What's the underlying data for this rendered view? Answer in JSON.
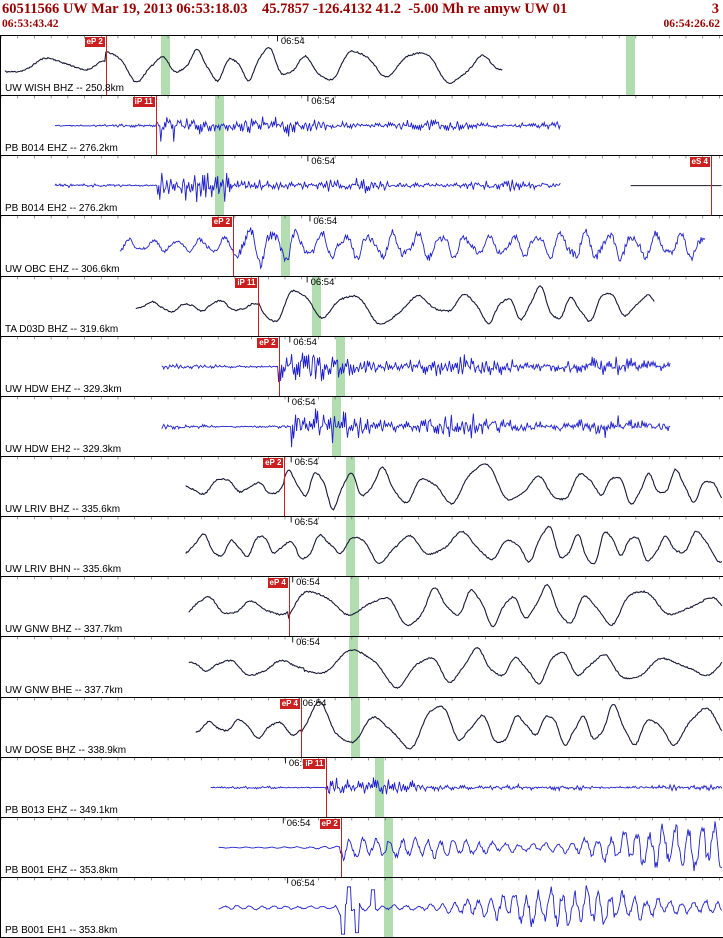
{
  "header": {
    "event_line": "60511566 UW Mar 19, 2013 06:53:18.03    45.7857 -126.4132 41.2  -5.00 Mh re amyw UW 01",
    "event_trailing": "3",
    "window_start": "06:53:43.42",
    "window_end": "06:54:26.62"
  },
  "colors": {
    "header_red": "#990000",
    "trace_dark": "#181836",
    "trace_blue": "#2020cc",
    "pick_red": "#cc1f1f",
    "band_green": "#a9d9a9",
    "frame": "#000000"
  },
  "traces": [
    {
      "station": "UW WISH BHZ -- 250.8km",
      "time_label": "06:54",
      "label_x": 0.383,
      "color": "dark",
      "style": "lp",
      "seed": 11,
      "start": 0.006,
      "end": 0.695,
      "onset": 0.145,
      "noise": 0.3,
      "peak": 0.8,
      "sustain": 0.62,
      "decay": 260,
      "period": 46,
      "picks": [
        {
          "label": "eP 2",
          "x": 0.145
        }
      ],
      "markers": [
        0.228,
        0.871
      ]
    },
    {
      "station": "PB B014 EHZ -- 276.2km",
      "time_label": "06:54",
      "label_x": 0.425,
      "color": "blue",
      "style": "hf",
      "seed": 22,
      "start": 0.075,
      "end": 0.775,
      "onset": 0.214,
      "noise": 0.08,
      "peak": 0.95,
      "sustain": 0.2,
      "decay": 90,
      "period": 2.2,
      "picks": [
        {
          "label": "iP 11",
          "x": 0.214
        }
      ],
      "markers": [
        0.302
      ]
    },
    {
      "station": "PB B014 EH2 -- 276.2km",
      "time_label": "06:54",
      "label_x": 0.425,
      "color": "blue",
      "style": "hf",
      "seed": 33,
      "start": 0.075,
      "end": 0.775,
      "onset": 0.216,
      "noise": 0.08,
      "peak": 1.0,
      "sustain": 0.2,
      "decay": 90,
      "period": 2.2,
      "picks": [
        {
          "label": "eS 4",
          "x": 0.982
        }
      ],
      "markers": [
        0.302
      ],
      "flat": [
        0.872,
        0.998
      ]
    },
    {
      "station": "UW OBC EHZ -- 306.6km",
      "time_label": "06:54",
      "label_x": 0.428,
      "color": "blue",
      "style": "mp",
      "seed": 44,
      "start": 0.165,
      "end": 0.975,
      "onset": 0.321,
      "noise": 0.3,
      "peak": 0.62,
      "sustain": 0.5,
      "decay": 400,
      "period": 24,
      "picks": [
        {
          "label": "eP 2",
          "x": 0.321
        }
      ],
      "markers": [
        0.394
      ]
    },
    {
      "station": "TA D03D BHZ -- 319.6km",
      "time_label": "06:54",
      "label_x": 0.424,
      "color": "dark",
      "style": "lp",
      "seed": 55,
      "start": 0.187,
      "end": 0.905,
      "onset": 0.356,
      "noise": 0.2,
      "peak": 0.8,
      "sustain": 0.6,
      "decay": 300,
      "period": 44,
      "picks": [
        {
          "label": "iP 11",
          "x": 0.356
        }
      ],
      "markers": [
        0.436
      ]
    },
    {
      "station": "UW HDW EHZ -- 329.3km",
      "time_label": "06:54",
      "label_x": 0.4,
      "color": "blue",
      "style": "hf",
      "seed": 66,
      "start": 0.222,
      "end": 0.927,
      "onset": 0.384,
      "noise": 0.1,
      "peak": 0.85,
      "sustain": 0.3,
      "decay": 160,
      "period": 2.4,
      "picks": [
        {
          "label": "eP 2",
          "x": 0.384
        }
      ],
      "markers": [
        0.47
      ]
    },
    {
      "station": "UW HDW EH2 -- 329.3km",
      "time_label": "06:54",
      "label_x": 0.398,
      "color": "blue",
      "style": "hf",
      "seed": 77,
      "start": 0.222,
      "end": 0.927,
      "onset": 0.4,
      "noise": 0.1,
      "peak": 0.8,
      "sustain": 0.32,
      "decay": 180,
      "period": 2.4,
      "picks": [],
      "markers": [
        0.464
      ]
    },
    {
      "station": "UW LRIV BHZ -- 335.6km",
      "time_label": "06:54",
      "label_x": 0.402,
      "color": "dark",
      "style": "lp",
      "seed": 88,
      "start": 0.256,
      "end": 0.998,
      "onset": 0.392,
      "noise": 0.45,
      "peak": 0.8,
      "sustain": 0.68,
      "decay": 500,
      "period": 40,
      "picks": [
        {
          "label": "eP 2",
          "x": 0.392
        }
      ],
      "markers": [
        0.484
      ]
    },
    {
      "station": "UW LRIV BHN -- 335.6km",
      "time_label": "06:54",
      "label_x": 0.402,
      "color": "dark",
      "style": "lp",
      "seed": 99,
      "start": 0.256,
      "end": 0.998,
      "onset": 0.41,
      "noise": 0.42,
      "peak": 0.7,
      "sustain": 0.6,
      "decay": 500,
      "period": 38,
      "picks": [],
      "markers": [
        0.484
      ]
    },
    {
      "station": "UW GNW BHZ -- 337.7km",
      "time_label": "06:54",
      "label_x": 0.404,
      "color": "dark",
      "style": "lp",
      "seed": 110,
      "start": 0.26,
      "end": 0.998,
      "onset": 0.398,
      "noise": 0.4,
      "peak": 0.82,
      "sustain": 0.66,
      "decay": 500,
      "period": 48,
      "picks": [
        {
          "label": "eP 4",
          "x": 0.398
        }
      ],
      "markers": [
        0.489
      ]
    },
    {
      "station": "UW GNW BHE -- 337.7km",
      "time_label": "06:54",
      "label_x": 0.404,
      "color": "dark",
      "style": "lp",
      "seed": 121,
      "start": 0.26,
      "end": 0.998,
      "onset": 0.42,
      "noise": 0.38,
      "peak": 0.75,
      "sustain": 0.62,
      "decay": 500,
      "period": 54,
      "picks": [],
      "markers": [
        0.487
      ]
    },
    {
      "station": "UW DOSE BHZ -- 338.9km",
      "time_label": "06:54",
      "label_x": 0.413,
      "color": "dark",
      "style": "lp",
      "seed": 132,
      "start": 0.27,
      "end": 0.998,
      "onset": 0.415,
      "noise": 0.38,
      "peak": 0.88,
      "sustain": 0.75,
      "decay": 600,
      "period": 42,
      "picks": [
        {
          "label": "eP 4",
          "x": 0.415
        }
      ],
      "markers": [
        0.49
      ]
    },
    {
      "station": "PB B013 EHZ -- 349.1km",
      "time_label": "06:54",
      "label_x": 0.394,
      "color": "blue",
      "style": "hf",
      "seed": 143,
      "start": 0.29,
      "end": 0.998,
      "onset": 0.45,
      "noise": 0.05,
      "peak": 1.0,
      "sustain": 0.12,
      "decay": 55,
      "period": 2.2,
      "picks": [
        {
          "label": "iP 11",
          "x": 0.45
        }
      ],
      "markers": [
        0.523
      ]
    },
    {
      "station": "PB B001 EHZ -- 353.8km",
      "time_label": "06:54",
      "label_x": 0.391,
      "color": "blue",
      "style": "grow",
      "seed": 154,
      "start": 0.301,
      "end": 0.998,
      "onset": 0.47,
      "noise": 0.07,
      "peak": 0.68,
      "sustain": 0.55,
      "decay": 0,
      "period": 13,
      "picks": [
        {
          "label": "eP 2",
          "x": 0.47
        }
      ],
      "markers": [
        0.536
      ]
    },
    {
      "station": "PB B001 EH1 -- 353.8km",
      "time_label": "06:54",
      "label_x": 0.397,
      "color": "blue",
      "style": "grow",
      "seed": 165,
      "start": 0.301,
      "end": 0.998,
      "onset": 0.462,
      "noise": 0.07,
      "peak": 0.72,
      "sustain": 0.6,
      "decay": 0,
      "period": 12,
      "picks": [],
      "markers": [
        0.536
      ],
      "spikes": true
    }
  ]
}
